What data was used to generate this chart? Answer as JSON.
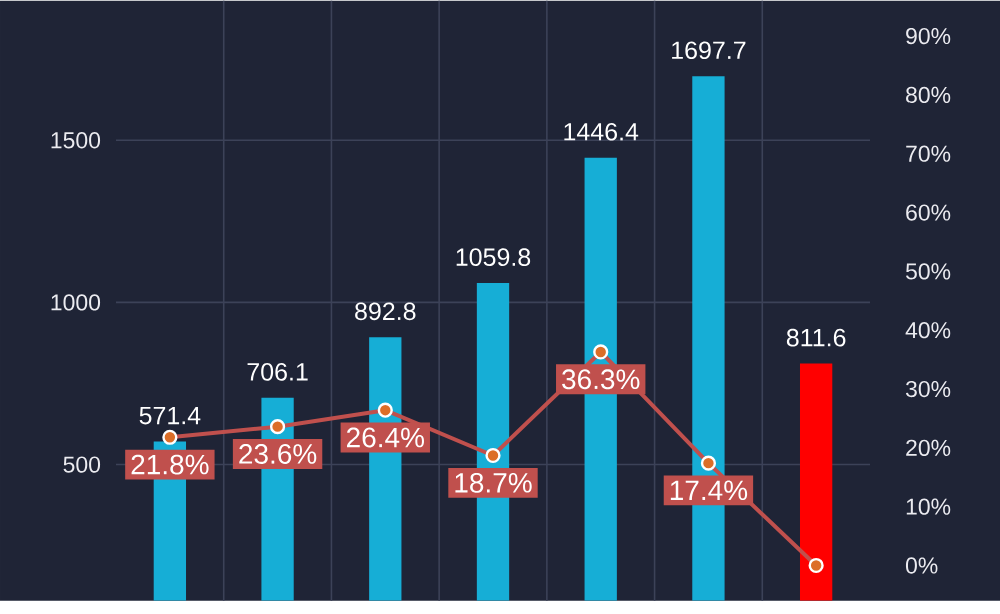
{
  "chart_data": {
    "type": "bar",
    "categories": [
      null,
      null,
      null,
      null,
      null,
      null,
      null
    ],
    "series": [
      {
        "colors": [
          "#16aed6",
          "#16aed6",
          "#16aed6",
          "#16aed6",
          "#16aed6",
          "#16aed6",
          "#ff0000"
        ],
        "values": [
          571.4,
          706.1,
          892.8,
          1059.8,
          1446.4,
          1697.7,
          811.6
        ]
      },
      {
        "type": "line",
        "axis": "y2",
        "color": "#c0504d",
        "values": [
          21.8,
          23.6,
          26.4,
          18.7,
          36.3,
          17.4,
          0
        ],
        "value_labels": [
          "21.8%",
          "23.6%",
          "26.4%",
          "18.7%",
          "36.3%",
          "17.4%",
          null
        ],
        "marker": "circle"
      }
    ],
    "data_labels": true,
    "ylim": [
      80,
      1930
    ],
    "yticks": [
      500,
      1000,
      1500
    ],
    "y2lim": [
      -6,
      96
    ],
    "y2ticks": [
      {
        "value": 0,
        "label": "0%"
      },
      {
        "value": 10,
        "label": "10%"
      },
      {
        "value": 20,
        "label": "20%"
      },
      {
        "value": 30,
        "label": "30%"
      },
      {
        "value": 40,
        "label": "40%"
      },
      {
        "value": 50,
        "label": "50%"
      },
      {
        "value": 60,
        "label": "60%"
      },
      {
        "value": 70,
        "label": "70%"
      },
      {
        "value": 80,
        "label": "80%"
      },
      {
        "value": 90,
        "label": "90%"
      }
    ],
    "grid": true
  }
}
